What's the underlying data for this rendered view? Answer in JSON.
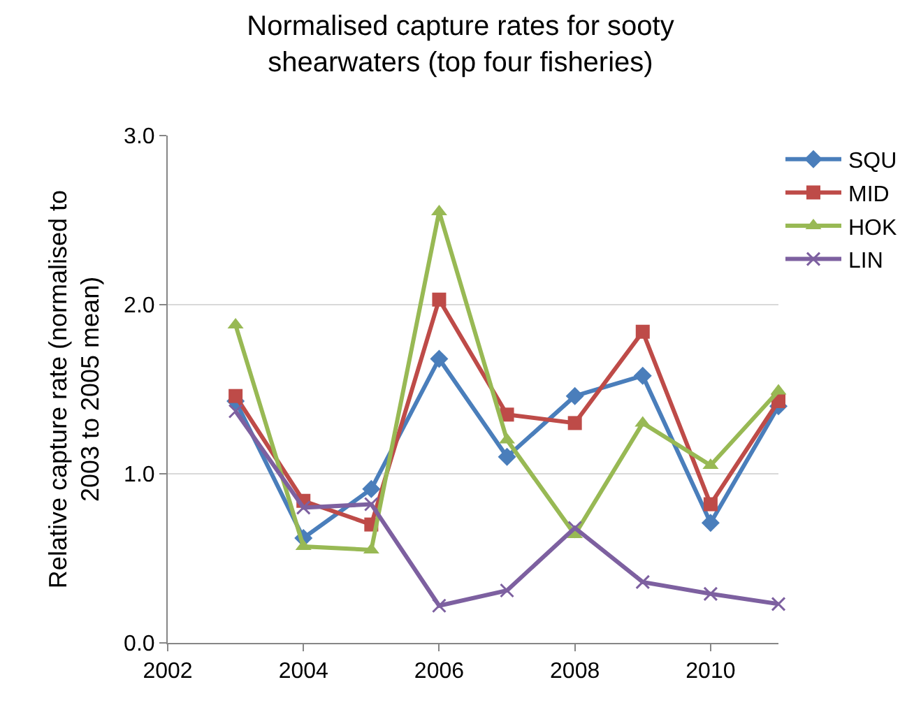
{
  "chart_data": {
    "type": "line",
    "title": "Normalised capture rates for sooty shearwaters (top four fisheries)",
    "ylabel": "Relative capture rate (normalised to 2003 to 2005 mean)",
    "x": [
      2003,
      2004,
      2005,
      2006,
      2007,
      2008,
      2009,
      2010,
      2011
    ],
    "series": [
      {
        "name": "SQU",
        "color": "#4a7ebb",
        "marker": "diamond",
        "values": [
          1.43,
          0.62,
          0.91,
          1.68,
          1.1,
          1.46,
          1.58,
          0.71,
          1.4
        ]
      },
      {
        "name": "MID",
        "color": "#be4b48",
        "marker": "square",
        "values": [
          1.46,
          0.84,
          0.7,
          2.03,
          1.35,
          1.3,
          1.84,
          0.82,
          1.43
        ]
      },
      {
        "name": "HOK",
        "color": "#98b954",
        "marker": "triangle",
        "values": [
          1.88,
          0.57,
          0.55,
          2.55,
          1.2,
          0.64,
          1.3,
          1.05,
          1.49
        ]
      },
      {
        "name": "LIN",
        "color": "#7d60a0",
        "marker": "cross",
        "values": [
          1.37,
          0.8,
          0.82,
          0.22,
          0.31,
          0.68,
          0.36,
          0.29,
          0.23
        ]
      }
    ],
    "xlim": [
      2002,
      2011
    ],
    "xticks": [
      2002,
      2004,
      2006,
      2008,
      2010
    ],
    "ylim": [
      0,
      3
    ],
    "yticks": [
      {
        "value": 0,
        "label": "0.0"
      },
      {
        "value": 1,
        "label": "1.0"
      },
      {
        "value": 2,
        "label": "2.0"
      },
      {
        "value": 3,
        "label": "3.0"
      }
    ],
    "grid": "y",
    "legend": "top right"
  }
}
